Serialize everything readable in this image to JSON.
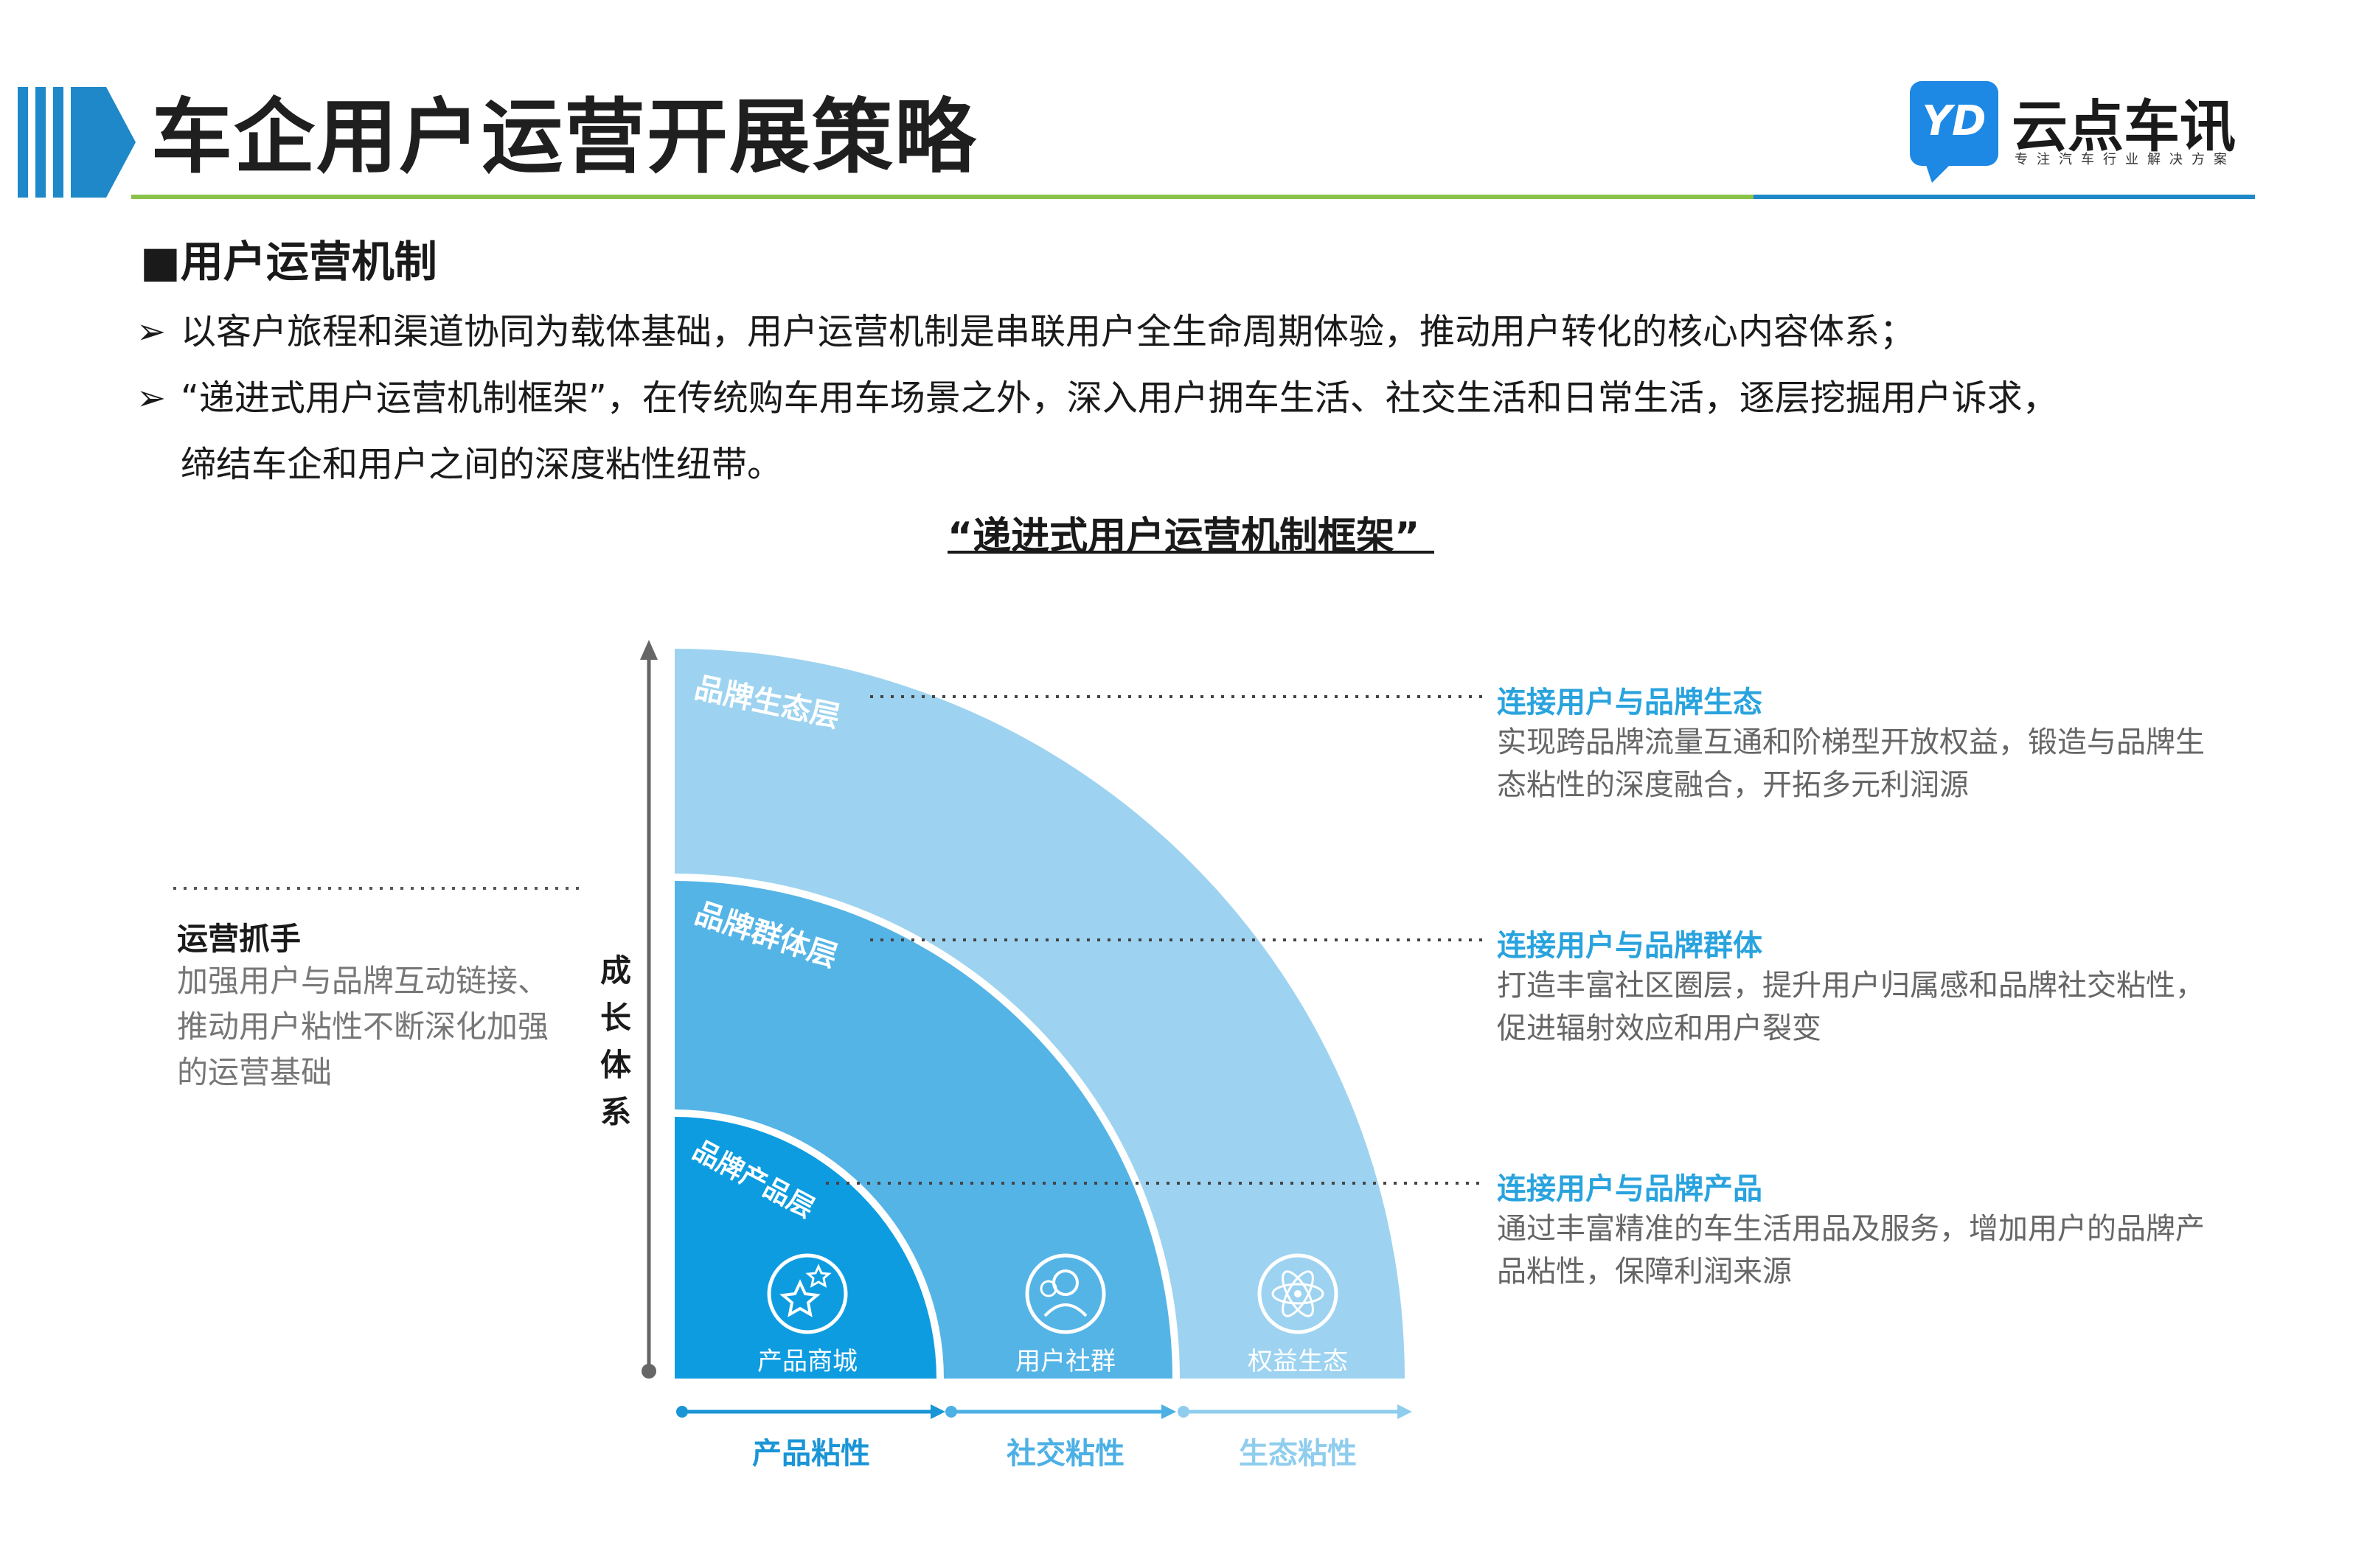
{
  "header": {
    "title": "车企用户运营开展策略",
    "logo_badge": "YD",
    "logo_name": "云点车讯",
    "logo_tagline": "专注汽车行业解决方案"
  },
  "section": {
    "heading": "■用户运营机制",
    "bullets": [
      "以客户旅程和渠道协同为载体基础，用户运营机制是串联用户全生命周期体验，推动用户转化的核心内容体系；",
      "“递进式用户运营机制框架”，在传统购车用车场景之外，深入用户拥车生活、社交生活和日常生活，逐层挖掘用户诉求，"
    ],
    "bullet_continuation": "缔结车企和用户之间的深度粘性纽带。",
    "bullet_marker": "➢"
  },
  "diagram": {
    "title": "“递进式用户运营机制框架”",
    "left_panel": {
      "heading": "运营抓手",
      "body": "加强用户与品牌互动链接、推动用户粘性不断深化加强的运营基础"
    },
    "vertical_axis_label": [
      "成",
      "长",
      "体",
      "系"
    ],
    "layers": [
      {
        "name": "品牌生态层",
        "color": "#9dd3f0"
      },
      {
        "name": "品牌群体层",
        "color": "#55b4e6"
      },
      {
        "name": "品牌产品层",
        "color": "#0d9ce0"
      }
    ],
    "icons": [
      {
        "label": "产品商城",
        "icon": "stars-icon"
      },
      {
        "label": "用户社群",
        "icon": "people-icon"
      },
      {
        "label": "权益生态",
        "icon": "atom-icon"
      }
    ],
    "stickiness": [
      {
        "label": "产品粘性",
        "color": "#1a95d6"
      },
      {
        "label": "社交粘性",
        "color": "#4cb0e4"
      },
      {
        "label": "生态粘性",
        "color": "#8fcdee"
      }
    ],
    "right_notes": [
      {
        "heading": "连接用户与品牌生态",
        "body": "实现跨品牌流量互通和阶梯型开放权益，锻造与品牌生态粘性的深度融合，开拓多元利润源"
      },
      {
        "heading": "连接用户与品牌群体",
        "body": "打造丰富社区圈层，提升用户归属感和品牌社交粘性，促进辐射效应和用户裂变"
      },
      {
        "heading": "连接用户与品牌产品",
        "body": "通过丰富精准的车生活用品及服务，增加用户的品牌产品粘性，保障利润来源"
      }
    ]
  }
}
